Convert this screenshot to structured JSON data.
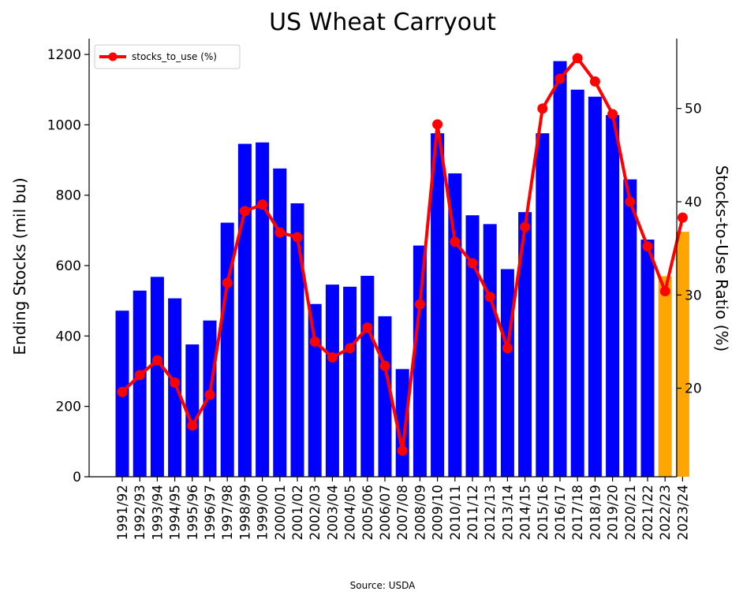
{
  "chart_data": {
    "type": "bar",
    "title": "US Wheat Carryout",
    "xlabel": "",
    "ylabel": "Ending Stocks (mil bu)",
    "ylabel_right": "Stocks-to-Use Ratio (%)",
    "source_note": "Source: USDA",
    "ylim": [
      0,
      1245
    ],
    "ylim_right": [
      10.5,
      57.5
    ],
    "yticks": [
      0,
      200,
      400,
      600,
      800,
      1000,
      1200
    ],
    "yticks_right": [
      20,
      30,
      40,
      50
    ],
    "grid": false,
    "legend_position": "top-left",
    "categories": [
      "1991/92",
      "1992/93",
      "1993/94",
      "1994/95",
      "1995/96",
      "1996/97",
      "1997/98",
      "1998/99",
      "1999/00",
      "2000/01",
      "2001/02",
      "2002/03",
      "2003/04",
      "2004/05",
      "2005/06",
      "2006/07",
      "2007/08",
      "2008/09",
      "2009/10",
      "2010/11",
      "2011/12",
      "2012/13",
      "2013/14",
      "2014/15",
      "2015/16",
      "2016/17",
      "2017/18",
      "2018/19",
      "2019/20",
      "2020/21",
      "2021/22",
      "2022/23",
      "2023/24"
    ],
    "series": [
      {
        "name": "",
        "kind": "bar",
        "axis": "left",
        "values": [
          472,
          529,
          568,
          507,
          376,
          444,
          722,
          946,
          950,
          876,
          777,
          491,
          546,
          540,
          571,
          456,
          306,
          657,
          976,
          862,
          743,
          718,
          590,
          752,
          976,
          1181,
          1100,
          1080,
          1028,
          845,
          674,
          570,
          696
        ],
        "bar_colors": [
          "#0000ff",
          "#0000ff",
          "#0000ff",
          "#0000ff",
          "#0000ff",
          "#0000ff",
          "#0000ff",
          "#0000ff",
          "#0000ff",
          "#0000ff",
          "#0000ff",
          "#0000ff",
          "#0000ff",
          "#0000ff",
          "#0000ff",
          "#0000ff",
          "#0000ff",
          "#0000ff",
          "#0000ff",
          "#0000ff",
          "#0000ff",
          "#0000ff",
          "#0000ff",
          "#0000ff",
          "#0000ff",
          "#0000ff",
          "#0000ff",
          "#0000ff",
          "#0000ff",
          "#0000ff",
          "#0000ff",
          "#ffa500",
          "#ffa500"
        ]
      },
      {
        "name": "stocks_to_use (%)",
        "kind": "line",
        "axis": "right",
        "color": "#ff0000",
        "values": [
          19.6,
          21.4,
          23.0,
          20.6,
          16.0,
          19.3,
          31.3,
          39.0,
          39.7,
          36.7,
          36.2,
          25.0,
          23.3,
          24.3,
          26.5,
          22.4,
          13.3,
          29.0,
          48.3,
          35.7,
          33.4,
          29.8,
          24.3,
          37.3,
          50.0,
          53.2,
          55.4,
          52.9,
          49.4,
          40.0,
          35.2,
          30.4,
          38.3
        ]
      }
    ]
  }
}
